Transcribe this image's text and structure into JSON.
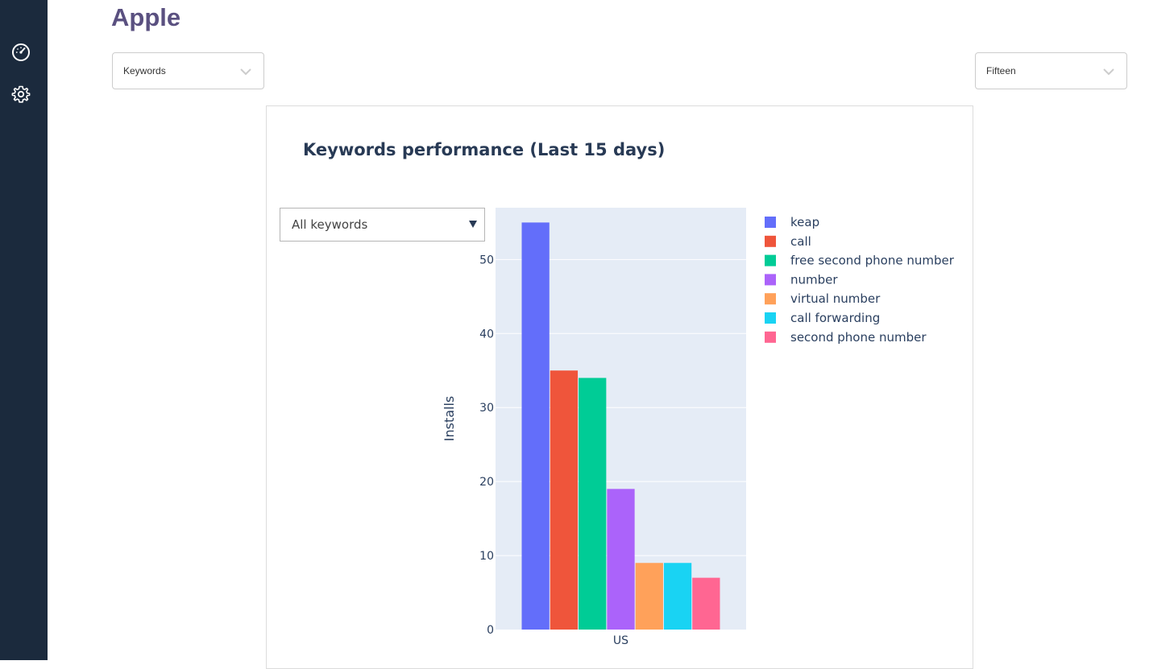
{
  "sidebar": {
    "items": [
      {
        "icon": "speedometer-icon"
      },
      {
        "icon": "gear-icon"
      }
    ]
  },
  "page": {
    "title": "Apple"
  },
  "filters": {
    "type_select": {
      "value": "Keywords"
    },
    "period_select": {
      "value": "Fifteen"
    }
  },
  "card": {
    "title": "Keywords performance (Last 15 days)",
    "keyword_dropdown": {
      "value": "All keywords"
    }
  },
  "chart_data": {
    "type": "bar",
    "title": "",
    "xlabel": "",
    "ylabel": "Installs",
    "categories": [
      "US"
    ],
    "ylim": [
      0,
      57
    ],
    "yticks": [
      0,
      10,
      20,
      30,
      40,
      50
    ],
    "grid": true,
    "legend": "right",
    "series": [
      {
        "name": "keap",
        "values": [
          55
        ],
        "color": "#636efa"
      },
      {
        "name": "call",
        "values": [
          35
        ],
        "color": "#ef553b"
      },
      {
        "name": "free second phone number",
        "values": [
          34
        ],
        "color": "#00cc96"
      },
      {
        "name": "number",
        "values": [
          19
        ],
        "color": "#ab63fa"
      },
      {
        "name": "virtual number",
        "values": [
          9
        ],
        "color": "#ffa15a"
      },
      {
        "name": "call forwarding",
        "values": [
          9
        ],
        "color": "#19d3f3"
      },
      {
        "name": "second phone number",
        "values": [
          7
        ],
        "color": "#ff6692"
      }
    ]
  }
}
